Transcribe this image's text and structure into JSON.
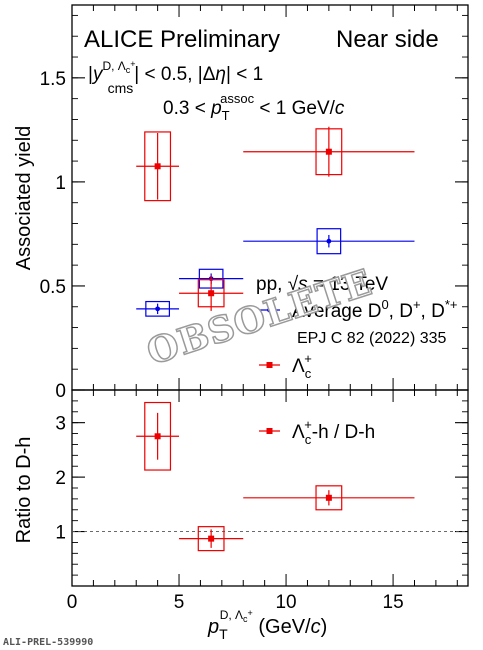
{
  "chart_data": [
    {
      "type": "scatter",
      "panel": "top",
      "ylabel": "Associated yield",
      "xlim": [
        0,
        18.5
      ],
      "ylim": [
        0,
        1.85
      ],
      "yticks": [
        0,
        0.5,
        1,
        1.5
      ],
      "ytick_labels": [
        "0",
        "0.5",
        "1",
        "1.5"
      ],
      "texts": {
        "experiment": "ALICE Preliminary",
        "side": "Near side",
        "rapidity_cut": "|y_cms^{D, Λc+}| < 0.5, |Δη| < 1",
        "passoc_cut": "0.3 < pT^assoc < 1 GeV/c",
        "system": "pp, √s = 13 TeV",
        "reference": "EPJ C 82 (2022) 335",
        "watermark": "OBSOLETE"
      },
      "series": [
        {
          "name": "Average D0, D+, D*+",
          "color": "#0000ee",
          "points": [
            {
              "x": 4,
              "xlo": 3,
              "xhi": 5,
              "y": 0.39,
              "stat": 0.025,
              "syst": 0.035
            },
            {
              "x": 6.5,
              "xlo": 5,
              "xhi": 8,
              "y": 0.535,
              "stat": 0.025,
              "syst": 0.045
            },
            {
              "x": 12,
              "xlo": 8,
              "xhi": 16,
              "y": 0.715,
              "stat": 0.03,
              "syst": 0.06
            }
          ]
        },
        {
          "name": "Λc+",
          "color": "#ee0000",
          "points": [
            {
              "x": 4,
              "xlo": 3,
              "xhi": 5,
              "y": 1.075,
              "stat": 0.16,
              "syst": 0.165
            },
            {
              "x": 6.5,
              "xlo": 5,
              "xhi": 8,
              "y": 0.465,
              "stat": 0.085,
              "syst": 0.065
            },
            {
              "x": 12,
              "xlo": 8,
              "xhi": 16,
              "y": 1.145,
              "stat": 0.12,
              "syst": 0.11
            }
          ]
        }
      ]
    },
    {
      "type": "scatter",
      "panel": "bottom",
      "xlabel": "pT^{D, Λc+} (GeV/c)",
      "ylabel": "Ratio to D-h",
      "xlim": [
        0,
        18.5
      ],
      "ylim": [
        0,
        3.6
      ],
      "xticks": [
        0,
        5,
        10,
        15
      ],
      "xtick_labels": [
        "0",
        "5",
        "10",
        "15"
      ],
      "yticks": [
        1,
        2,
        3
      ],
      "ytick_labels": [
        "1",
        "2",
        "3"
      ],
      "reference_line": 1,
      "series": [
        {
          "name": "Λc+-h / D-h",
          "color": "#ee0000",
          "points": [
            {
              "x": 4,
              "xlo": 3,
              "xhi": 5,
              "y": 2.75,
              "stat": 0.43,
              "syst": 0.62
            },
            {
              "x": 6.5,
              "xlo": 5,
              "xhi": 8,
              "y": 0.87,
              "stat": 0.17,
              "syst": 0.22
            },
            {
              "x": 12,
              "xlo": 8,
              "xhi": 16,
              "y": 1.62,
              "stat": 0.14,
              "syst": 0.22
            }
          ]
        }
      ]
    }
  ],
  "footer": {
    "id": "ALI-PREL-539990"
  }
}
